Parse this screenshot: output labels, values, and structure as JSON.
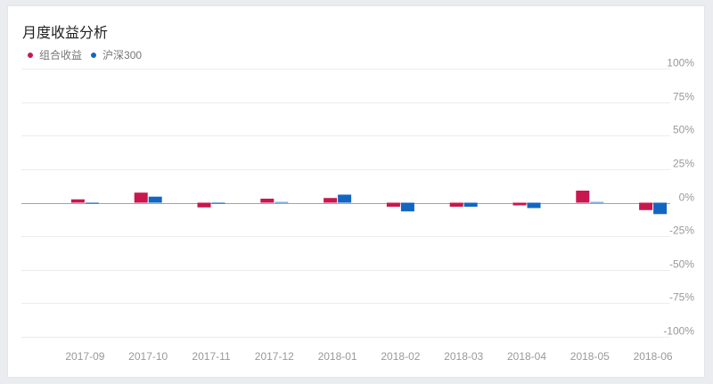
{
  "chart_data": {
    "type": "bar",
    "title": "月度收益分析",
    "categories": [
      "2017-09",
      "2017-10",
      "2017-11",
      "2017-12",
      "2018-01",
      "2018-02",
      "2018-03",
      "2018-04",
      "2018-05",
      "2018-06"
    ],
    "series": [
      {
        "name": "组合收益",
        "color": "#c8174f",
        "values": [
          2.5,
          7.5,
          -3.5,
          3.0,
          3.5,
          -3.0,
          -3.0,
          -2.0,
          9.0,
          -5.5
        ]
      },
      {
        "name": "沪深300",
        "color": "#1266c2",
        "values": [
          0,
          4.5,
          0,
          0.5,
          6.0,
          -6.5,
          -3.0,
          -4.0,
          0.5,
          -8.5
        ]
      }
    ],
    "y_ticks": [
      100,
      75,
      50,
      25,
      0,
      -25,
      -50,
      -75,
      -100
    ],
    "y_tick_labels": [
      "100%",
      "75%",
      "50%",
      "25%",
      "0%",
      "-25%",
      "-50%",
      "-75%",
      "-100%"
    ],
    "ylim": [
      -100,
      100
    ],
    "xlabel": "",
    "ylabel": "",
    "grid": true,
    "legend_position": "top-left"
  }
}
